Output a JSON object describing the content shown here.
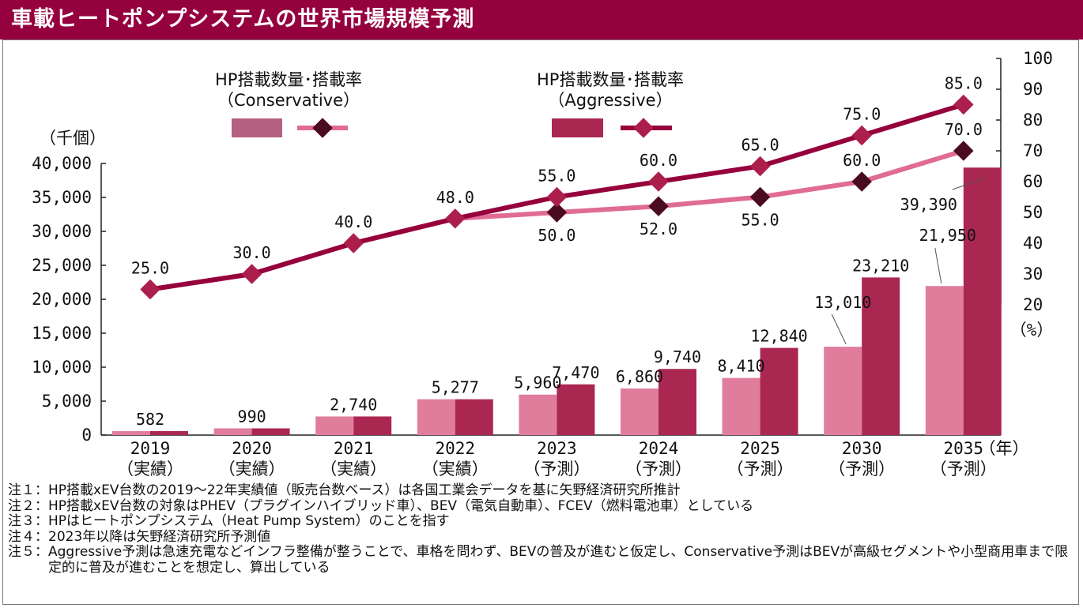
{
  "title": "車載ヒートポンプシステムの世界市場規模予測",
  "legend": {
    "conservative_label_line1": "HP搭載数量･搭載率",
    "conservative_label_line2": "（Conservative）",
    "aggressive_label_line1": "HP搭載数量･搭載率",
    "aggressive_label_line2": "（Aggressive）"
  },
  "axes": {
    "left_unit": "（千個）",
    "right_unit": "（%）",
    "x_unit": "（年）",
    "left_ticks": [
      "40,000",
      "35,000",
      "30,000",
      "25,000",
      "20,000",
      "15,000",
      "10,000",
      "5,000",
      "0"
    ],
    "right_ticks": [
      "100",
      "90",
      "80",
      "70",
      "60",
      "50",
      "40",
      "30",
      "20"
    ]
  },
  "colors": {
    "title_bg": "#95003e",
    "conservative_bar": "#e07d9d",
    "aggressive_bar": "#aa2752",
    "conservative_line": "#e06c94",
    "aggressive_line": "#96003d",
    "conservative_marker": "#4a0a1f",
    "aggressive_marker": "#ac1f4c",
    "legend_conservative_swatch": "#b46080"
  },
  "chart_data": {
    "type": "bar+line",
    "categories": [
      "2019",
      "2020",
      "2021",
      "2022",
      "2023",
      "2024",
      "2025",
      "2030",
      "2035"
    ],
    "category_sublabels": [
      "（実績）",
      "（実績）",
      "（実績）",
      "（実績）",
      "（予測）",
      "（予測）",
      "（予測）",
      "（予測）",
      "（予測）"
    ],
    "ylim_left": [
      0,
      40000
    ],
    "ylim_right": [
      20,
      100
    ],
    "bars": [
      {
        "name": "HP搭載数量（Conservative）",
        "values": [
          582,
          990,
          2740,
          5277,
          5960,
          6860,
          8410,
          13010,
          21950
        ]
      },
      {
        "name": "HP搭載数量（Aggressive）",
        "values": [
          582,
          990,
          2740,
          5277,
          7470,
          9740,
          12840,
          23210,
          39390
        ]
      }
    ],
    "bar_labels": [
      [
        "582",
        "990",
        "2,740",
        "5,277",
        "5,960",
        "6,860",
        "8,410",
        "13,010",
        "21,950"
      ],
      [
        "",
        "",
        "",
        "",
        "7,470",
        "9,740",
        "12,840",
        "23,210",
        "39,390"
      ]
    ],
    "lines": [
      {
        "name": "搭載率（Conservative）",
        "values": [
          25.0,
          30.0,
          40.0,
          48.0,
          50.0,
          52.0,
          55.0,
          60.0,
          70.0
        ]
      },
      {
        "name": "搭載率（Aggressive）",
        "values": [
          25.0,
          30.0,
          40.0,
          48.0,
          55.0,
          60.0,
          65.0,
          75.0,
          85.0
        ]
      }
    ],
    "line_labels": [
      [
        "",
        "",
        "",
        "",
        "50.0",
        "52.0",
        "55.0",
        "60.0",
        "70.0"
      ],
      [
        "25.0",
        "30.0",
        "40.0",
        "48.0",
        "55.0",
        "60.0",
        "65.0",
        "75.0",
        "85.0"
      ]
    ]
  },
  "notes": [
    {
      "prefix": "注１：",
      "text": "HP搭載xEV台数の2019～22年実績値（販売台数ベース）は各国工業会データを基に矢野経済研究所推計"
    },
    {
      "prefix": "注２：",
      "text": "HP搭載xEV台数の対象はPHEV（プラグインハイブリッド車）、BEV（電気自動車）、FCEV（燃料電池車）としている"
    },
    {
      "prefix": "注３：",
      "text": "HPはヒートポンプシステム（Heat Pump System）のことを指す"
    },
    {
      "prefix": "注４：",
      "text": "2023年以降は矢野経済研究所予測値"
    },
    {
      "prefix": "注５：",
      "text": "Aggressive予測は急速充電などインフラ整備が整うことで、車格を問わず、BEVの普及が進むと仮定し、Conservative予測はBEVが高級セグメントや小型商用車まで限定的に普及が進むことを想定し、算出している"
    }
  ]
}
